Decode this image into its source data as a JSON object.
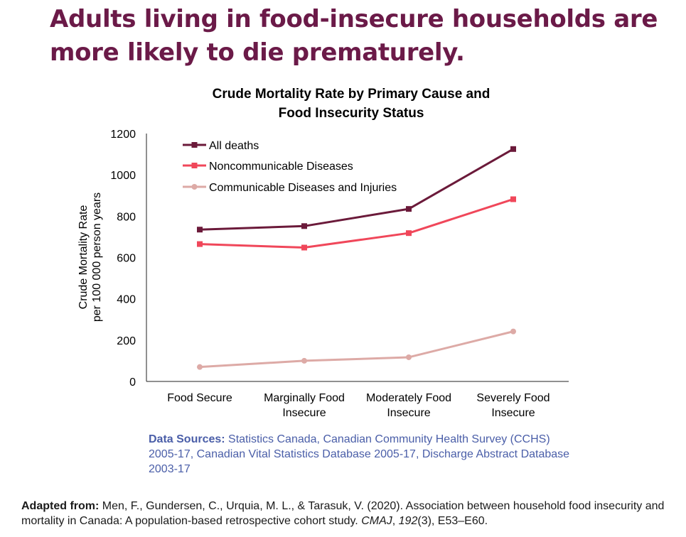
{
  "headline": "Adults living in food-insecure households are more likely to die prematurely.",
  "chart_data": {
    "type": "line",
    "title_line1": "Crude Mortality Rate by Primary Cause and",
    "title_line2": "Food Insecurity Status",
    "ylabel_line1": "Crude Mortality Rate",
    "ylabel_line2": "per 100 000 person years",
    "xlabel": "",
    "ylim": [
      0,
      1200
    ],
    "yticks": [
      "0",
      "200",
      "400",
      "600",
      "800",
      "1000",
      "1200"
    ],
    "categories": [
      [
        "Food Secure",
        ""
      ],
      [
        "Marginally Food",
        "Insecure"
      ],
      [
        "Moderately Food",
        "Insecure"
      ],
      [
        "Severely Food",
        "Insecure"
      ]
    ],
    "legend_position": "top-left",
    "grid": false,
    "series": [
      {
        "name": "All deaths",
        "values": [
          735,
          752,
          835,
          1125
        ],
        "color": "#6b1a3a",
        "marker": "square"
      },
      {
        "name": "Noncommunicable Diseases",
        "values": [
          665,
          648,
          718,
          882
        ],
        "color": "#f0475a",
        "marker": "square"
      },
      {
        "name": "Communicable Diseases and Injuries",
        "values": [
          70,
          100,
          117,
          242
        ],
        "color": "#ddaaa6",
        "marker": "circle"
      }
    ]
  },
  "sources": {
    "label": "Data Sources:",
    "text": " Statistics Canada, Canadian Community Health Survey (CCHS) 2005-17, Canadian Vital Statistics Database 2005-17, Discharge Abstract Database 2003-17"
  },
  "citation": {
    "label": "Adapted from:",
    "text_before": " Men, F., Gundersen, C., Urquia, M. L., & Tarasuk, V. (2020). Association between household food insecurity and mortality in Canada: A population-based retrospective cohort study. ",
    "journal": "CMAJ",
    "sep": ", ",
    "volume": "192",
    "text_after": "(3), E53–E60."
  }
}
